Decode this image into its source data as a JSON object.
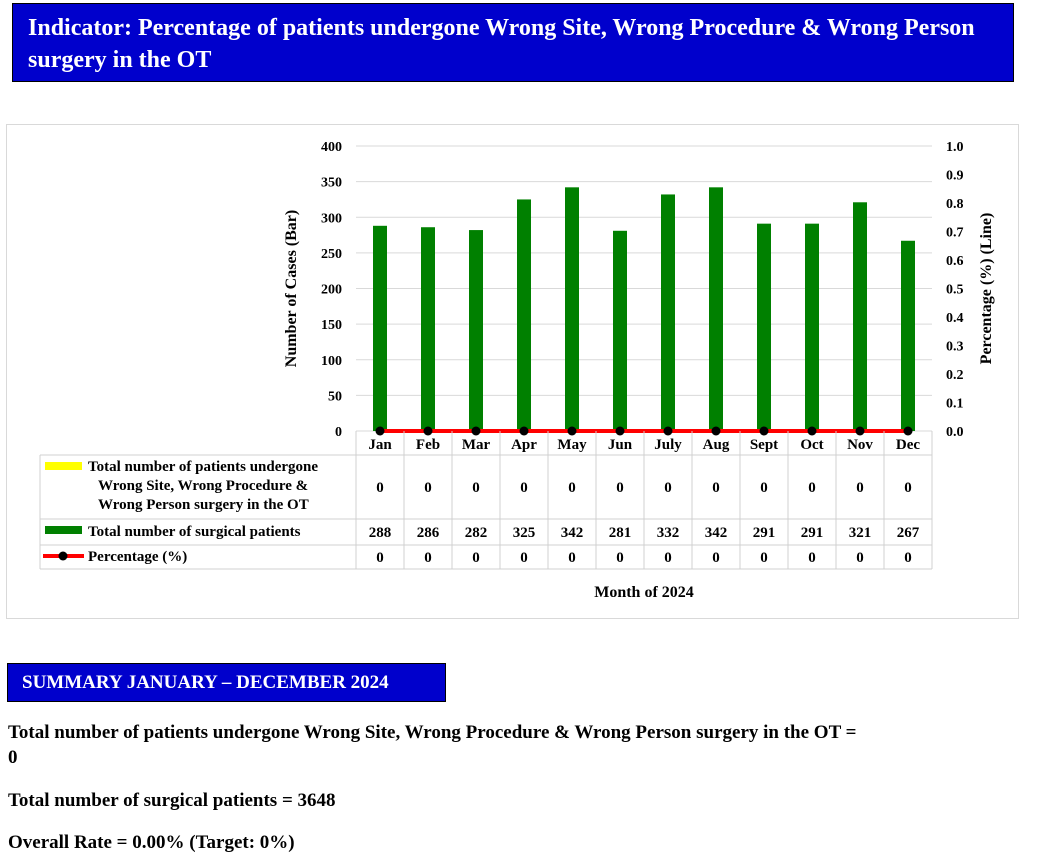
{
  "header": {
    "title": "Indicator: Percentage of patients undergone Wrong Site, Wrong Procedure & Wrong Person surgery in the OT"
  },
  "chart_data": {
    "type": "bar",
    "categories": [
      "Jan",
      "Feb",
      "Mar",
      "Apr",
      "May",
      "Jun",
      "July",
      "Aug",
      "Sept",
      "Oct",
      "Nov",
      "Dec"
    ],
    "series": [
      {
        "name": "Total number of patients undergone Wrong Site, Wrong Procedure & Wrong Person surgery in the OT",
        "type": "bar",
        "color": "#ffff00",
        "axis": "left",
        "values": [
          0,
          0,
          0,
          0,
          0,
          0,
          0,
          0,
          0,
          0,
          0,
          0
        ]
      },
      {
        "name": "Total number of surgical patients",
        "type": "bar",
        "color": "#008000",
        "axis": "left",
        "values": [
          288,
          286,
          282,
          325,
          342,
          281,
          332,
          342,
          291,
          291,
          321,
          267
        ]
      },
      {
        "name": "Percentage (%)",
        "type": "line",
        "color": "#ff0000",
        "marker_color": "#000000",
        "axis": "right",
        "values": [
          0,
          0,
          0,
          0,
          0,
          0,
          0,
          0,
          0,
          0,
          0,
          0
        ]
      }
    ],
    "ylabel": "Number of Cases (Bar)",
    "y2label": "Percentage (%) (Line)",
    "xlabel": "Month of 2024",
    "ylim": [
      0,
      400
    ],
    "yticks": [
      0,
      50,
      100,
      150,
      200,
      250,
      300,
      350,
      400
    ],
    "y2lim": [
      0,
      1.0
    ],
    "y2ticks": [
      "0.0",
      "0.1",
      "0.2",
      "0.3",
      "0.4",
      "0.5",
      "0.6",
      "0.7",
      "0.8",
      "0.9",
      "1.0"
    ],
    "grid": true,
    "legend": "data-table"
  },
  "summary": {
    "heading": "SUMMARY JANUARY – DECEMBER 2024",
    "line1": "Total number of patients undergone Wrong Site, Wrong Procedure & Wrong Person surgery in the OT =",
    "line1_value": "0",
    "line2": "Total number of surgical patients = 3648",
    "line3": "Overall Rate = 0.00% (Target: 0%)"
  }
}
